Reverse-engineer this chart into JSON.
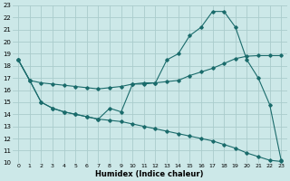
{
  "xlabel": "Humidex (Indice chaleur)",
  "bg_color": "#cce8e8",
  "grid_color": "#aacccc",
  "line_color": "#1a6b6b",
  "xlim": [
    -0.5,
    23.5
  ],
  "ylim": [
    10,
    23
  ],
  "x_ticks": [
    0,
    1,
    2,
    3,
    4,
    5,
    6,
    7,
    8,
    9,
    10,
    11,
    12,
    13,
    14,
    15,
    16,
    17,
    18,
    19,
    20,
    21,
    22,
    23
  ],
  "y_ticks": [
    10,
    11,
    12,
    13,
    14,
    15,
    16,
    17,
    18,
    19,
    20,
    21,
    22,
    23
  ],
  "s1": [
    18.5,
    16.8,
    16.6,
    16.5,
    16.4,
    16.3,
    16.2,
    16.1,
    16.2,
    16.3,
    16.5,
    16.6,
    16.6,
    16.7,
    16.8,
    17.2,
    17.5,
    17.8,
    18.2,
    18.6,
    18.8,
    18.85,
    18.85,
    18.85
  ],
  "s2": [
    18.5,
    16.8,
    15.0,
    14.5,
    14.2,
    14.0,
    13.8,
    13.6,
    14.5,
    14.2,
    16.5,
    16.5,
    16.6,
    18.5,
    19.0,
    20.5,
    21.2,
    22.5,
    22.5,
    21.2,
    18.5,
    17.0,
    14.8,
    10.2
  ],
  "s3": [
    18.5,
    16.8,
    15.0,
    14.5,
    14.2,
    14.0,
    13.8,
    13.6,
    13.5,
    13.4,
    13.2,
    13.0,
    12.8,
    12.6,
    12.4,
    12.2,
    12.0,
    11.8,
    11.5,
    11.2,
    10.8,
    10.5,
    10.2,
    10.1
  ]
}
